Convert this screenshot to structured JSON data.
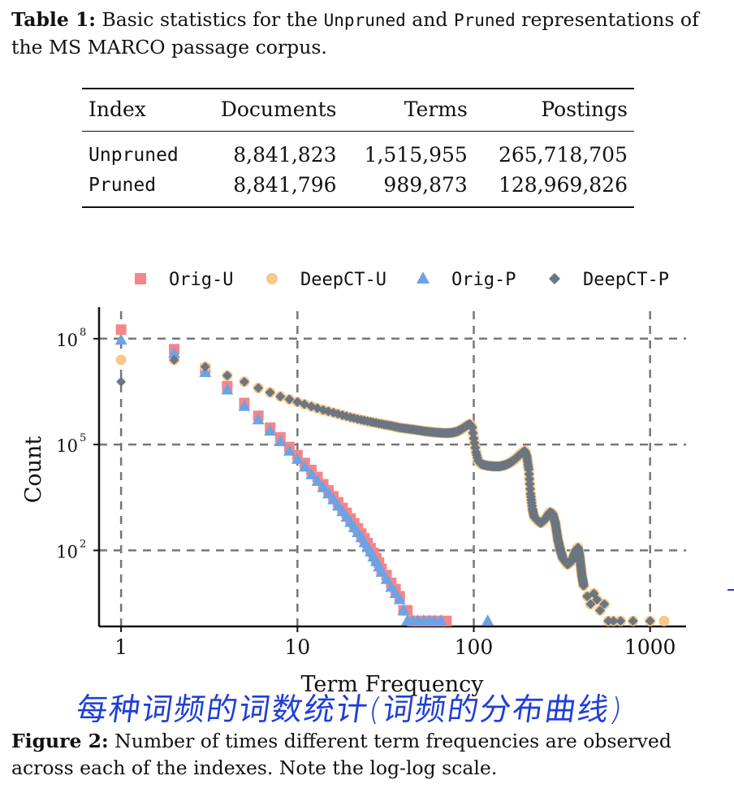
{
  "table_caption": {
    "label": "Table 1:",
    "text_before": " Basic statistics for the ",
    "mono1": "Unpruned",
    "text_mid": " and ",
    "mono2": "Pruned",
    "text_after": " representations of the MS MARCO passage corpus."
  },
  "table": {
    "headers": [
      "Index",
      "Documents",
      "Terms",
      "Postings"
    ],
    "rows": [
      [
        "Unpruned",
        "8,841,823",
        "1,515,955",
        "265,718,705"
      ],
      [
        "Pruned",
        "8,841,796",
        "989,873",
        "128,969,826"
      ]
    ]
  },
  "figure_caption": {
    "label": "Figure 2:",
    "text": " Number of times different term frequencies are observed across each of the indexes. Note the log-log scale."
  },
  "handwritten_note": "每种词频的词数统计(词频的分布曲线)",
  "chart_data": {
    "type": "scatter",
    "xlabel": "Term Frequency",
    "ylabel": "Count",
    "xscale": "log",
    "yscale": "log",
    "xlim": [
      0.75,
      1600
    ],
    "ylim": [
      0.7,
      600000000
    ],
    "x_ticks": [
      "1",
      "10",
      "100",
      "1000"
    ],
    "y_ticks": [
      {
        "base": "10",
        "exp": "2",
        "value": 100
      },
      {
        "base": "10",
        "exp": "5",
        "value": 100000
      },
      {
        "base": "10",
        "exp": "8",
        "value": 100000000
      }
    ],
    "grid": "dashed",
    "legend_position": "top",
    "series": [
      {
        "name": "Orig-U",
        "color": "#f4868b",
        "marker": "square",
        "points": [
          [
            1,
            180000000
          ],
          [
            2,
            50000000
          ],
          [
            3,
            14000000
          ],
          [
            4,
            4500000
          ],
          [
            5,
            1500000
          ],
          [
            6,
            650000
          ],
          [
            7,
            300000
          ],
          [
            8,
            160000
          ],
          [
            9,
            85000
          ],
          [
            10,
            50000
          ],
          [
            11,
            30000
          ],
          [
            12,
            19000
          ],
          [
            13,
            12000
          ],
          [
            14,
            7500
          ],
          [
            15,
            5000
          ],
          [
            16,
            3400
          ],
          [
            17,
            2300
          ],
          [
            18,
            1600
          ],
          [
            19,
            1150
          ],
          [
            20,
            800
          ],
          [
            21,
            580
          ],
          [
            22,
            420
          ],
          [
            23,
            300
          ],
          [
            24,
            220
          ],
          [
            25,
            160
          ],
          [
            26,
            115
          ],
          [
            27,
            85
          ],
          [
            28,
            60
          ],
          [
            29,
            45
          ],
          [
            30,
            30
          ],
          [
            32,
            20
          ],
          [
            34,
            12
          ],
          [
            36,
            8
          ],
          [
            38,
            5
          ],
          [
            40,
            2
          ],
          [
            42,
            2
          ],
          [
            45,
            1
          ],
          [
            48,
            1
          ],
          [
            52,
            1
          ],
          [
            56,
            1
          ],
          [
            60,
            1
          ],
          [
            65,
            1
          ],
          [
            70,
            1
          ]
        ]
      },
      {
        "name": "DeepCT-U",
        "color": "#f9c98a",
        "marker": "circle",
        "points": [
          [
            1,
            25000000
          ],
          [
            2,
            25000000
          ],
          [
            3,
            16000000
          ],
          [
            4,
            9000000
          ],
          [
            5,
            6000000
          ],
          [
            6,
            4000000
          ],
          [
            7,
            3000000
          ],
          [
            8,
            2300000
          ],
          [
            9,
            1900000
          ],
          [
            10,
            1600000
          ],
          [
            12,
            1200000
          ],
          [
            14,
            950000
          ],
          [
            16,
            800000
          ],
          [
            18,
            680000
          ],
          [
            20,
            590000
          ],
          [
            23,
            500000
          ],
          [
            26,
            440000
          ],
          [
            30,
            380000
          ],
          [
            34,
            340000
          ],
          [
            38,
            300000
          ],
          [
            42,
            280000
          ],
          [
            47,
            260000
          ],
          [
            52,
            240000
          ],
          [
            58,
            225000
          ],
          [
            64,
            215000
          ],
          [
            70,
            210000
          ],
          [
            75,
            215000
          ],
          [
            80,
            230000
          ],
          [
            85,
            270000
          ],
          [
            90,
            330000
          ],
          [
            95,
            380000
          ],
          [
            98,
            300000
          ],
          [
            100,
            150000
          ],
          [
            103,
            60000
          ],
          [
            106,
            35000
          ],
          [
            110,
            28000
          ],
          [
            120,
            25000
          ],
          [
            130,
            24000
          ],
          [
            140,
            24000
          ],
          [
            150,
            26000
          ],
          [
            160,
            30000
          ],
          [
            170,
            37000
          ],
          [
            180,
            48000
          ],
          [
            190,
            60000
          ],
          [
            195,
            65000
          ],
          [
            200,
            45000
          ],
          [
            205,
            20000
          ],
          [
            210,
            4000
          ],
          [
            215,
            1500
          ],
          [
            220,
            900
          ],
          [
            230,
            700
          ],
          [
            240,
            600
          ],
          [
            250,
            700
          ],
          [
            260,
            900
          ],
          [
            270,
            1200
          ],
          [
            280,
            1100
          ],
          [
            290,
            600
          ],
          [
            300,
            200
          ],
          [
            310,
            100
          ],
          [
            320,
            60
          ],
          [
            340,
            40
          ],
          [
            360,
            50
          ],
          [
            380,
            100
          ],
          [
            390,
            120
          ],
          [
            400,
            60
          ],
          [
            410,
            20
          ],
          [
            420,
            10
          ],
          [
            440,
            5
          ],
          [
            460,
            3
          ],
          [
            480,
            6
          ],
          [
            500,
            4
          ],
          [
            520,
            2
          ],
          [
            550,
            3
          ],
          [
            580,
            1
          ],
          [
            620,
            1
          ],
          [
            680,
            1
          ],
          [
            800,
            1
          ],
          [
            1000,
            1
          ],
          [
            1200,
            1
          ]
        ]
      },
      {
        "name": "Orig-P",
        "color": "#6aa3e6",
        "marker": "triangle",
        "points": [
          [
            1,
            90000000
          ],
          [
            2,
            38000000
          ],
          [
            3,
            11000000
          ],
          [
            4,
            3500000
          ],
          [
            5,
            1200000
          ],
          [
            6,
            500000
          ],
          [
            7,
            240000
          ],
          [
            8,
            120000
          ],
          [
            9,
            65000
          ],
          [
            10,
            38000
          ],
          [
            11,
            23000
          ],
          [
            12,
            14000
          ],
          [
            13,
            9000
          ],
          [
            14,
            6000
          ],
          [
            15,
            4000
          ],
          [
            16,
            2700
          ],
          [
            17,
            1800
          ],
          [
            18,
            1250
          ],
          [
            19,
            870
          ],
          [
            20,
            620
          ],
          [
            21,
            440
          ],
          [
            22,
            320
          ],
          [
            23,
            230
          ],
          [
            24,
            165
          ],
          [
            25,
            120
          ],
          [
            26,
            90
          ],
          [
            27,
            65
          ],
          [
            28,
            48
          ],
          [
            29,
            34
          ],
          [
            30,
            24
          ],
          [
            32,
            15
          ],
          [
            34,
            9
          ],
          [
            36,
            6
          ],
          [
            38,
            4
          ],
          [
            40,
            2
          ],
          [
            42,
            1
          ],
          [
            45,
            1
          ],
          [
            48,
            1
          ],
          [
            52,
            1
          ],
          [
            56,
            1
          ],
          [
            60,
            1
          ],
          [
            65,
            1
          ],
          [
            120,
            1
          ]
        ]
      },
      {
        "name": "DeepCT-P",
        "color": "#6b7682",
        "marker": "diamond",
        "points": [
          [
            1,
            6000000
          ],
          [
            2,
            25000000
          ],
          [
            3,
            16000000
          ],
          [
            4,
            9000000
          ],
          [
            5,
            6000000
          ],
          [
            6,
            4000000
          ],
          [
            7,
            3000000
          ],
          [
            8,
            2300000
          ],
          [
            9,
            1900000
          ],
          [
            10,
            1600000
          ],
          [
            12,
            1200000
          ],
          [
            14,
            950000
          ],
          [
            16,
            800000
          ],
          [
            18,
            680000
          ],
          [
            20,
            590000
          ],
          [
            23,
            500000
          ],
          [
            26,
            440000
          ],
          [
            30,
            380000
          ],
          [
            34,
            340000
          ],
          [
            38,
            300000
          ],
          [
            42,
            280000
          ],
          [
            47,
            260000
          ],
          [
            52,
            240000
          ],
          [
            58,
            225000
          ],
          [
            64,
            215000
          ],
          [
            70,
            210000
          ],
          [
            75,
            215000
          ],
          [
            80,
            230000
          ],
          [
            85,
            270000
          ],
          [
            90,
            330000
          ],
          [
            95,
            380000
          ],
          [
            98,
            300000
          ],
          [
            100,
            150000
          ],
          [
            103,
            60000
          ],
          [
            106,
            35000
          ],
          [
            110,
            28000
          ],
          [
            120,
            25000
          ],
          [
            130,
            24000
          ],
          [
            140,
            24000
          ],
          [
            150,
            26000
          ],
          [
            160,
            30000
          ],
          [
            170,
            37000
          ],
          [
            180,
            48000
          ],
          [
            190,
            60000
          ],
          [
            195,
            65000
          ],
          [
            200,
            45000
          ],
          [
            205,
            20000
          ],
          [
            210,
            4000
          ],
          [
            215,
            1500
          ],
          [
            220,
            900
          ],
          [
            230,
            700
          ],
          [
            240,
            600
          ],
          [
            250,
            700
          ],
          [
            260,
            900
          ],
          [
            270,
            1200
          ],
          [
            280,
            1100
          ],
          [
            290,
            600
          ],
          [
            300,
            200
          ],
          [
            310,
            100
          ],
          [
            320,
            60
          ],
          [
            340,
            40
          ],
          [
            360,
            50
          ],
          [
            380,
            100
          ],
          [
            390,
            120
          ],
          [
            400,
            60
          ],
          [
            410,
            20
          ],
          [
            420,
            10
          ],
          [
            440,
            5
          ],
          [
            460,
            3
          ],
          [
            480,
            6
          ],
          [
            500,
            4
          ],
          [
            520,
            2
          ],
          [
            550,
            3
          ],
          [
            580,
            1
          ],
          [
            620,
            1
          ],
          [
            680,
            1
          ],
          [
            800,
            1
          ],
          [
            1000,
            1
          ]
        ]
      }
    ]
  }
}
